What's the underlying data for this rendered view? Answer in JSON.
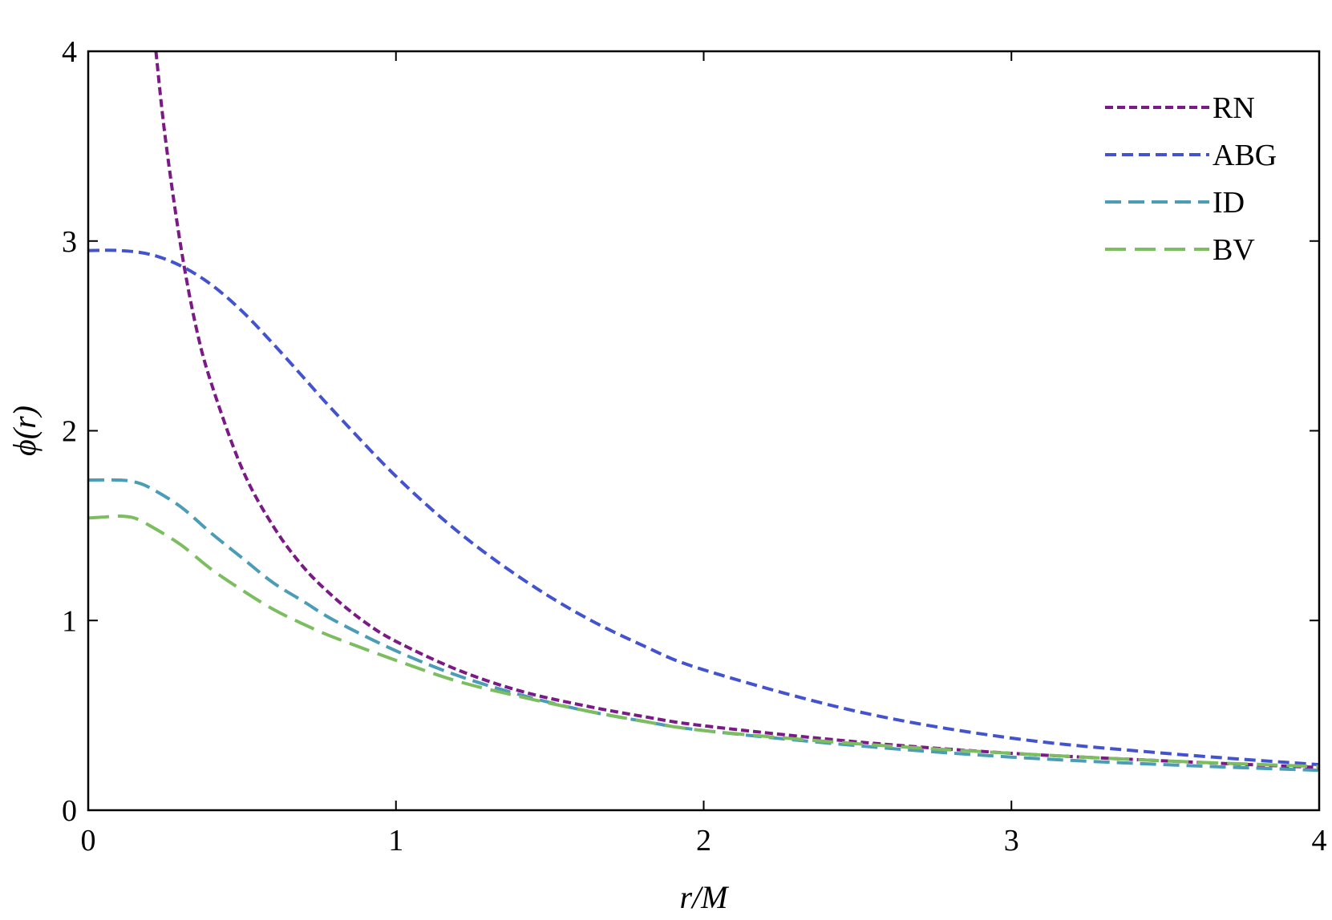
{
  "chart_data": {
    "type": "line",
    "xlabel": "r/M",
    "ylabel": "ϕ(r)",
    "xlim": [
      0,
      4
    ],
    "ylim": [
      0,
      4
    ],
    "x_ticks": [
      "0",
      "1",
      "2",
      "3",
      "4"
    ],
    "y_ticks": [
      "0",
      "1",
      "2",
      "3",
      "4"
    ],
    "grid": false,
    "legend_position": "top-right",
    "series": [
      {
        "name": "RN",
        "color": "#7b1a86",
        "dash": "short",
        "x": [
          0.22,
          0.25,
          0.3,
          0.35,
          0.4,
          0.5,
          0.6,
          0.7,
          0.8,
          0.9,
          1.0,
          1.2,
          1.4,
          1.6,
          1.8,
          2.0,
          2.5,
          3.0,
          3.5,
          4.0
        ],
        "y": [
          4.0,
          3.55,
          2.98,
          2.55,
          2.25,
          1.8,
          1.5,
          1.28,
          1.12,
          0.99,
          0.89,
          0.74,
          0.63,
          0.555,
          0.495,
          0.445,
          0.36,
          0.3,
          0.26,
          0.225
        ]
      },
      {
        "name": "ABG",
        "color": "#4353cf",
        "dash": "medium",
        "x": [
          0,
          0.1,
          0.2,
          0.3,
          0.4,
          0.5,
          0.6,
          0.7,
          0.8,
          1.0,
          1.2,
          1.4,
          1.6,
          1.8,
          2.0,
          2.5,
          3.0,
          3.5,
          4.0
        ],
        "y": [
          2.95,
          2.95,
          2.93,
          2.87,
          2.77,
          2.63,
          2.46,
          2.28,
          2.1,
          1.76,
          1.47,
          1.23,
          1.03,
          0.87,
          0.74,
          0.52,
          0.38,
          0.3,
          0.24
        ]
      },
      {
        "name": "ID",
        "color": "#4a9db5",
        "dash": "long",
        "x": [
          0,
          0.1,
          0.15,
          0.2,
          0.3,
          0.4,
          0.5,
          0.6,
          0.7,
          0.8,
          1.0,
          1.2,
          1.4,
          1.6,
          1.8,
          2.0,
          2.5,
          3.0,
          3.5,
          4.0
        ],
        "y": [
          1.74,
          1.74,
          1.73,
          1.7,
          1.6,
          1.46,
          1.33,
          1.2,
          1.1,
          1.0,
          0.84,
          0.71,
          0.61,
          0.53,
          0.47,
          0.42,
          0.34,
          0.28,
          0.24,
          0.21
        ]
      },
      {
        "name": "BV",
        "color": "#7cbd5f",
        "dash": "longer",
        "x": [
          0,
          0.05,
          0.1,
          0.15,
          0.2,
          0.3,
          0.4,
          0.5,
          0.6,
          0.7,
          0.8,
          1.0,
          1.2,
          1.4,
          1.6,
          1.8,
          2.0,
          2.5,
          3.0,
          3.5,
          4.0
        ],
        "y": [
          1.54,
          1.545,
          1.55,
          1.54,
          1.5,
          1.4,
          1.27,
          1.16,
          1.06,
          0.98,
          0.91,
          0.79,
          0.68,
          0.6,
          0.53,
          0.47,
          0.42,
          0.35,
          0.3,
          0.26,
          0.23
        ]
      }
    ]
  }
}
